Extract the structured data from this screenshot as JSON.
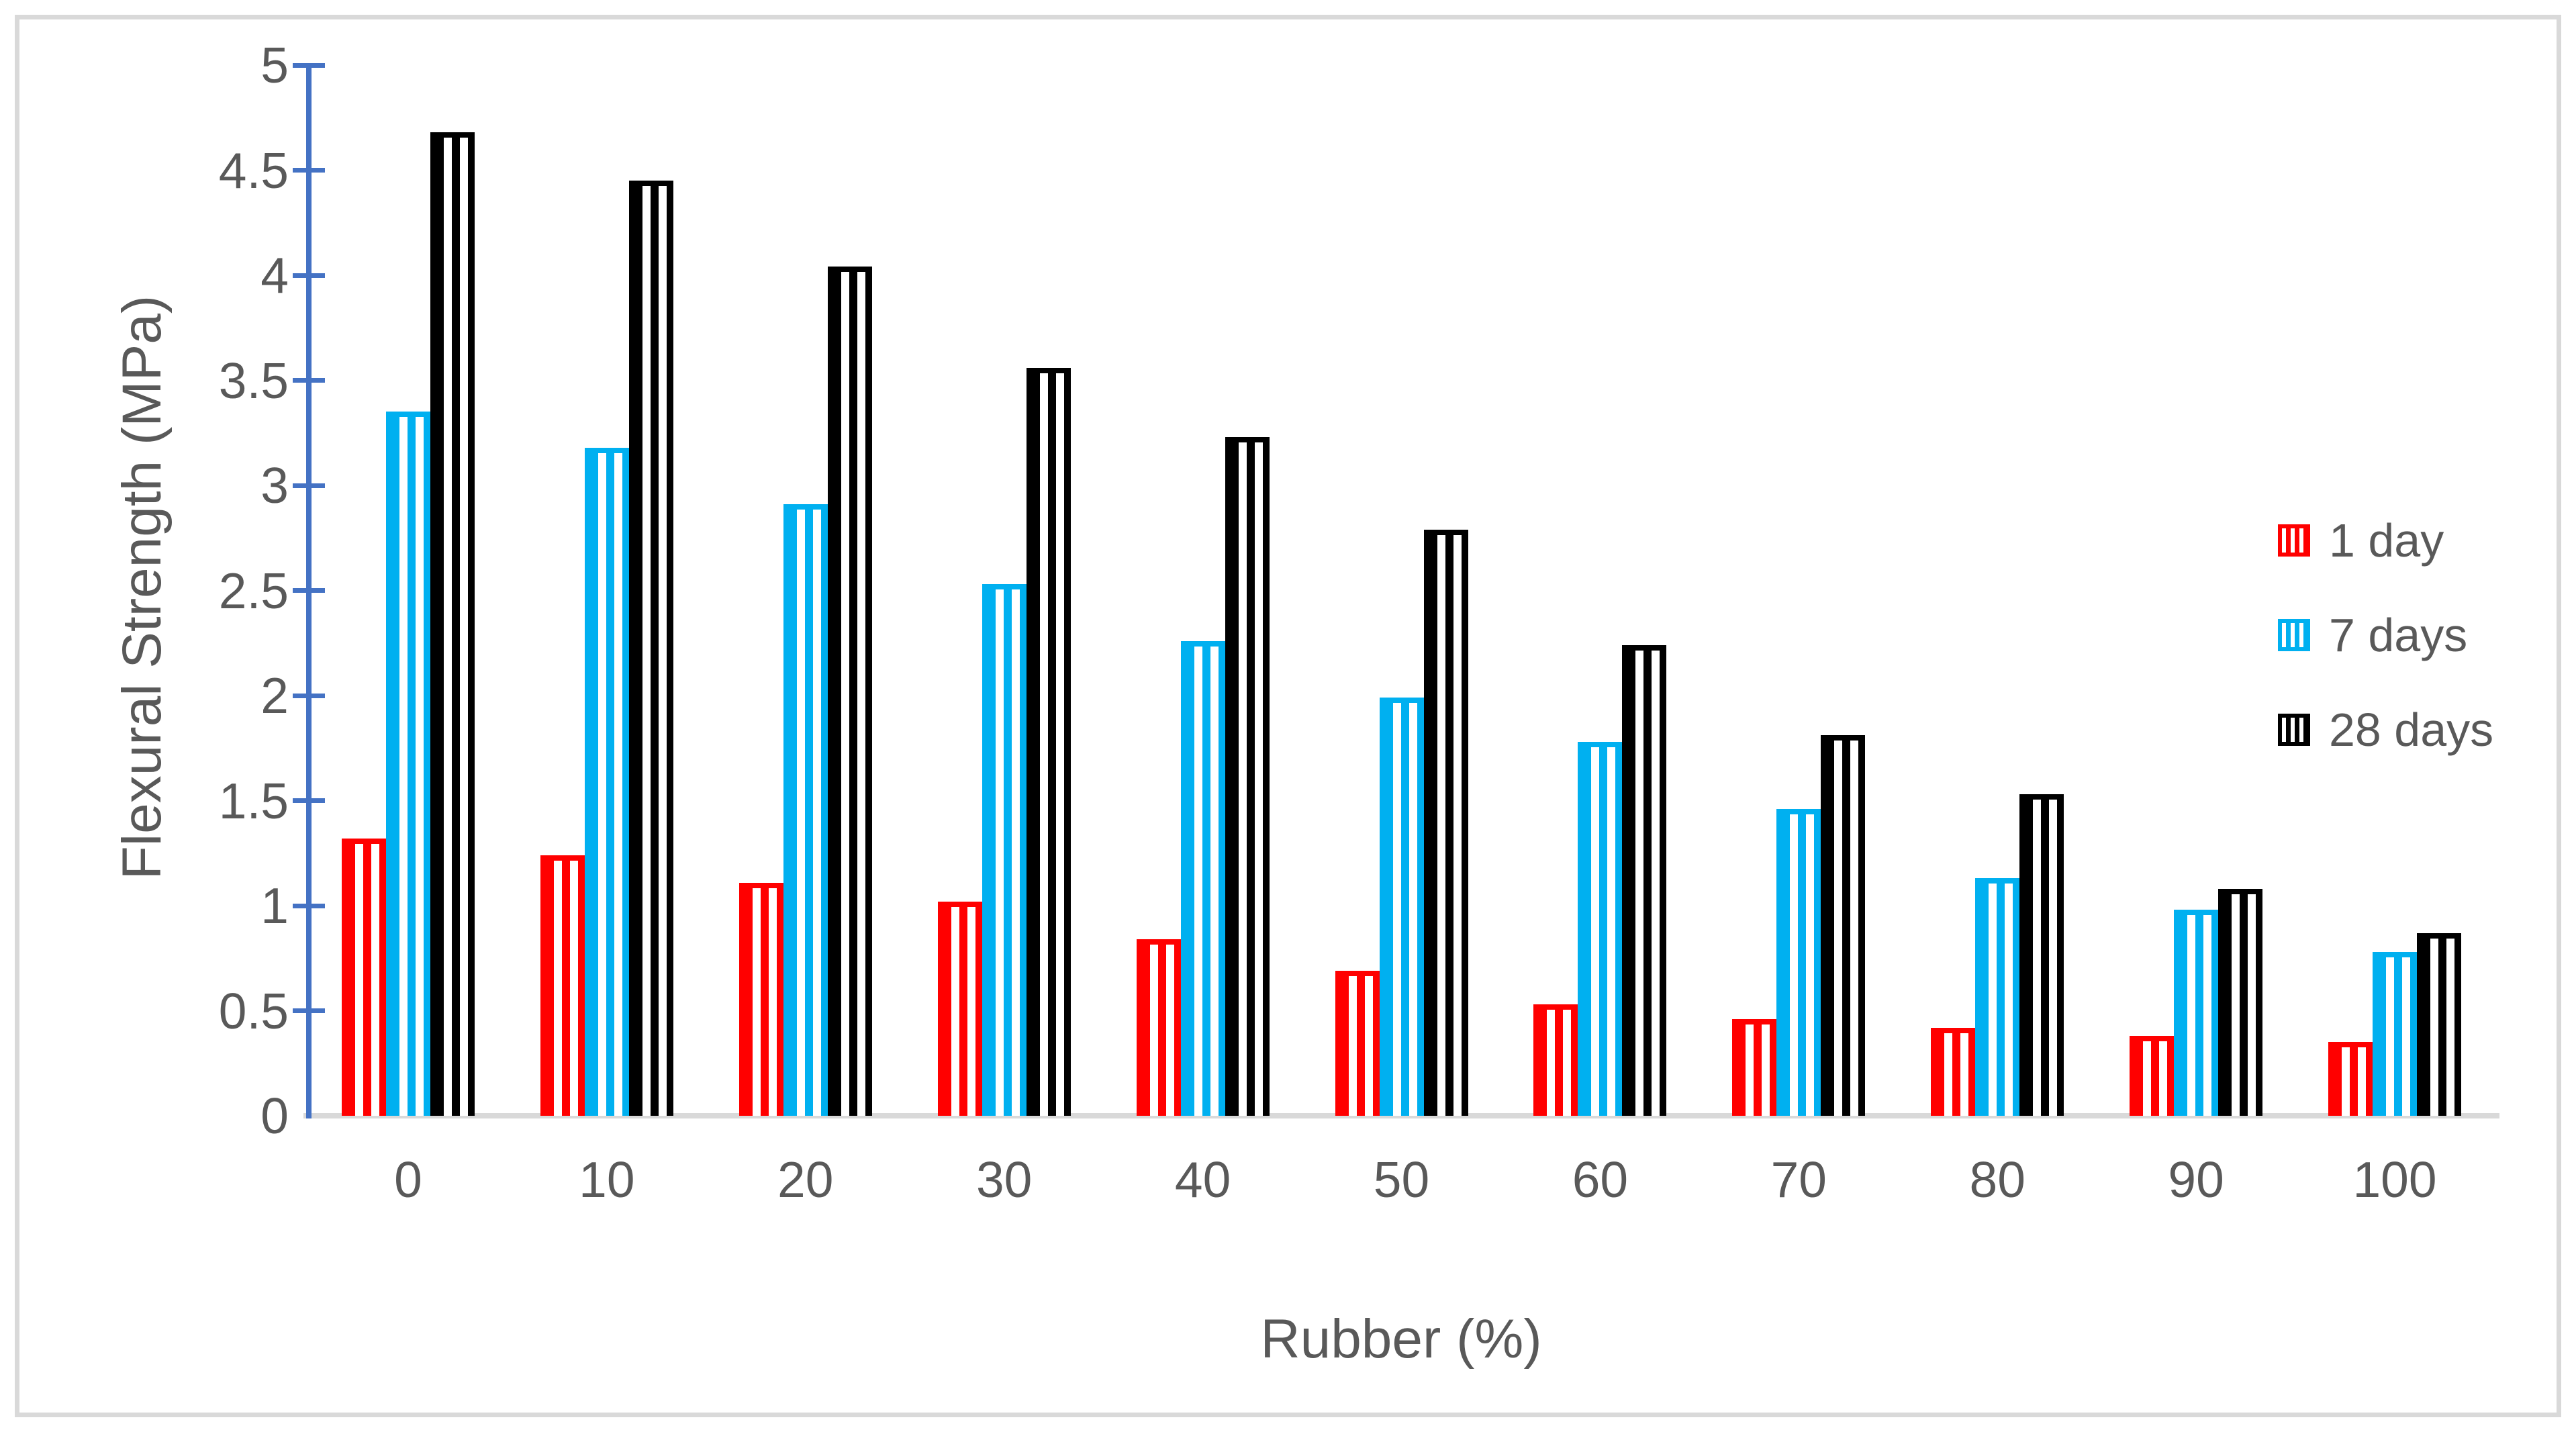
{
  "colors": {
    "axis_line": "#4472C4",
    "text": "#595959",
    "baseline": "#d9d9d9",
    "frame_border": "#d9d9d9",
    "background": "#ffffff"
  },
  "chart_data": {
    "type": "bar",
    "title": "",
    "xlabel": "Rubber (%)",
    "ylabel": "Flexural Strength (MPa)",
    "ylim": [
      0,
      5
    ],
    "ytick_step": 0.5,
    "ytick_labels": [
      "0",
      "0.5",
      "1",
      "1.5",
      "2",
      "2.5",
      "3",
      "3.5",
      "4",
      "4.5",
      "5"
    ],
    "grid": "off",
    "legend_position": "right",
    "bar_fill_pattern": "vertical-stripes",
    "categories": [
      0,
      10,
      20,
      30,
      40,
      50,
      60,
      70,
      80,
      90,
      100
    ],
    "series": [
      {
        "name": "1 day",
        "color": "#FF0000",
        "values": [
          1.32,
          1.24,
          1.11,
          1.02,
          0.84,
          0.69,
          0.53,
          0.46,
          0.42,
          0.38,
          0.35
        ]
      },
      {
        "name": "7 days",
        "color": "#00B0F0",
        "values": [
          3.35,
          3.18,
          2.91,
          2.53,
          2.26,
          1.99,
          1.78,
          1.46,
          1.13,
          0.98,
          0.78
        ]
      },
      {
        "name": "28 days",
        "color": "#000000",
        "values": [
          4.68,
          4.45,
          4.04,
          3.56,
          3.23,
          2.79,
          2.24,
          1.81,
          1.53,
          1.08,
          0.87
        ]
      }
    ]
  }
}
